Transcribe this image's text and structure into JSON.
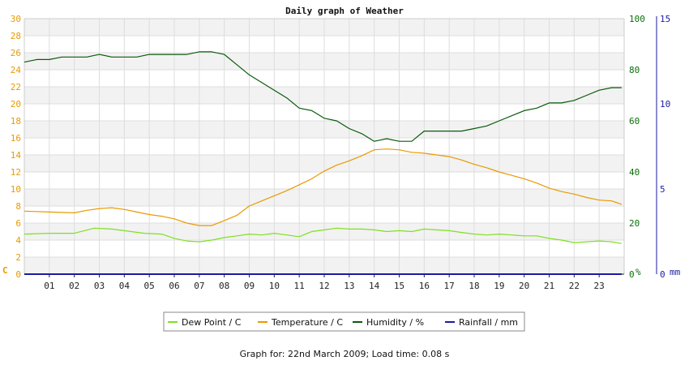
{
  "chart_data": {
    "type": "line",
    "title": "Daily graph of Weather",
    "x_ticks": [
      "01",
      "02",
      "03",
      "04",
      "05",
      "06",
      "07",
      "08",
      "09",
      "10",
      "11",
      "12",
      "13",
      "14",
      "15",
      "16",
      "17",
      "18",
      "19",
      "20",
      "21",
      "22",
      "23"
    ],
    "x_range": [
      0,
      24
    ],
    "axes": {
      "left": {
        "unit": "C",
        "range": [
          0,
          30
        ],
        "ticks": [
          0,
          2,
          4,
          6,
          8,
          10,
          12,
          14,
          16,
          18,
          20,
          22,
          24,
          26,
          28,
          30
        ],
        "color": "#e89a00"
      },
      "right_humidity": {
        "unit": "%",
        "range": [
          0,
          100
        ],
        "ticks": [
          0,
          20,
          40,
          60,
          80,
          100
        ],
        "color": "#0b6e0b"
      },
      "right_rain": {
        "unit": "mm",
        "range": [
          0,
          15
        ],
        "ticks": [
          0,
          5,
          10,
          15
        ],
        "color": "#1a1aa6"
      }
    },
    "grid": true,
    "legend_position": "bottom",
    "series": [
      {
        "name": "Dew Point / C",
        "axis": "left",
        "color": "#7fe020",
        "x": [
          0,
          1,
          2,
          2.8,
          3.5,
          4,
          4.8,
          5.5,
          6,
          6.5,
          7,
          7.5,
          8,
          8.5,
          9,
          9.5,
          10,
          10.5,
          11,
          11.5,
          12,
          12.5,
          13,
          13.5,
          14,
          14.5,
          15,
          15.5,
          16,
          16.5,
          17,
          17.5,
          18,
          18.5,
          19,
          19.5,
          20,
          20.5,
          21,
          21.5,
          22,
          22.5,
          23,
          23.5,
          23.9
        ],
        "values": [
          4.7,
          4.8,
          4.8,
          5.4,
          5.3,
          5.1,
          4.8,
          4.7,
          4.2,
          3.9,
          3.8,
          4.0,
          4.3,
          4.5,
          4.7,
          4.6,
          4.8,
          4.6,
          4.4,
          5.0,
          5.2,
          5.4,
          5.3,
          5.3,
          5.2,
          5.0,
          5.1,
          5.0,
          5.3,
          5.2,
          5.1,
          4.9,
          4.7,
          4.6,
          4.7,
          4.6,
          4.5,
          4.5,
          4.2,
          4.0,
          3.7,
          3.8,
          3.9,
          3.8,
          3.6
        ]
      },
      {
        "name": "Temperature / C",
        "axis": "left",
        "color": "#e89a00",
        "x": [
          0,
          1,
          2,
          2.5,
          3,
          3.5,
          4,
          4.5,
          5,
          5.5,
          6,
          6.5,
          7,
          7.5,
          8,
          8.5,
          9,
          9.5,
          10,
          10.5,
          11,
          11.5,
          12,
          12.5,
          13,
          13.5,
          14,
          14.5,
          15,
          15.5,
          16,
          16.5,
          17,
          17.5,
          18,
          18.5,
          19,
          19.5,
          20,
          20.5,
          21,
          21.5,
          22,
          22.5,
          23,
          23.5,
          23.9
        ],
        "values": [
          7.4,
          7.3,
          7.2,
          7.5,
          7.7,
          7.8,
          7.6,
          7.3,
          7.0,
          6.8,
          6.5,
          6.0,
          5.7,
          5.7,
          6.3,
          6.9,
          8.0,
          8.6,
          9.2,
          9.8,
          10.5,
          11.2,
          12.1,
          12.8,
          13.3,
          13.9,
          14.6,
          14.7,
          14.6,
          14.3,
          14.2,
          14.0,
          13.8,
          13.4,
          12.9,
          12.5,
          12.0,
          11.6,
          11.2,
          10.7,
          10.1,
          9.7,
          9.4,
          9.0,
          8.7,
          8.6,
          8.2
        ]
      },
      {
        "name": "Humidity / %",
        "axis": "right_humidity",
        "color": "#0b5a0b",
        "x": [
          0,
          0.5,
          1,
          1.5,
          2,
          2.5,
          3,
          3.5,
          4,
          4.5,
          5,
          5.5,
          6,
          6.5,
          7,
          7.5,
          8,
          8.5,
          9,
          9.5,
          10,
          10.5,
          11,
          11.5,
          12,
          12.5,
          13,
          13.5,
          14,
          14.5,
          15,
          15.5,
          16,
          16.5,
          17,
          17.5,
          18,
          18.5,
          19,
          19.5,
          20,
          20.5,
          21,
          21.5,
          22,
          22.5,
          23,
          23.5,
          23.9
        ],
        "values": [
          83,
          84,
          84,
          85,
          85,
          85,
          86,
          85,
          85,
          85,
          86,
          86,
          86,
          86,
          87,
          87,
          86,
          82,
          78,
          75,
          72,
          69,
          65,
          64,
          61,
          60,
          57,
          55,
          52,
          53,
          52,
          52,
          56,
          56,
          56,
          56,
          57,
          58,
          60,
          62,
          64,
          65,
          67,
          67,
          68,
          70,
          72,
          73,
          73
        ]
      },
      {
        "name": "Rainfall / mm",
        "axis": "right_rain",
        "color": "#1a1aa6",
        "x": [
          0,
          23.9
        ],
        "values": [
          0,
          0
        ]
      }
    ]
  },
  "footer": "Graph for: 22nd March 2009; Load time: 0.08 s"
}
